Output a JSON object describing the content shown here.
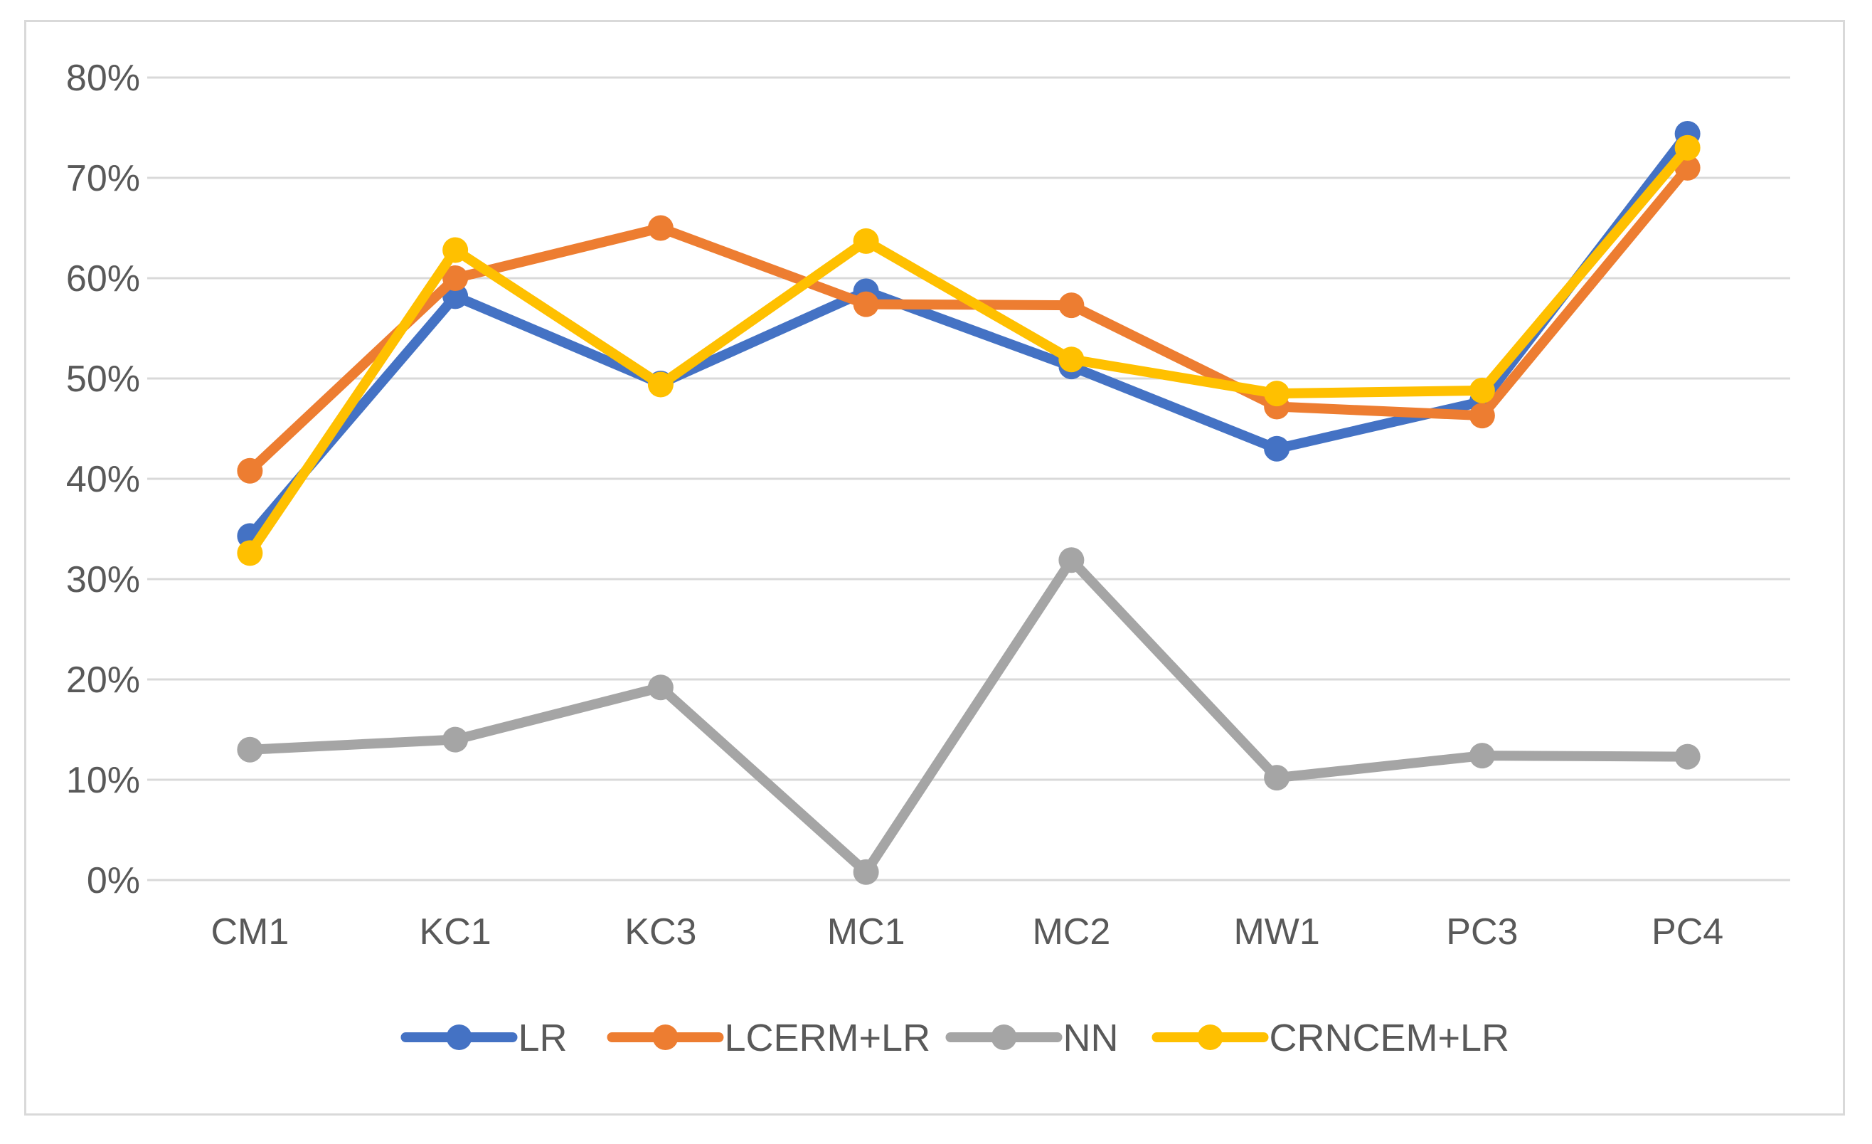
{
  "chart_data": {
    "type": "line",
    "title": "",
    "xlabel": "",
    "ylabel": "",
    "categories": [
      "CM1",
      "KC1",
      "KC3",
      "MC1",
      "MC2",
      "MW1",
      "PC3",
      "PC4"
    ],
    "ylim": [
      0,
      80
    ],
    "yticks": [
      0,
      10,
      20,
      30,
      40,
      50,
      60,
      70,
      80
    ],
    "ytick_labels": [
      "0%",
      "10%",
      "20%",
      "30%",
      "40%",
      "50%",
      "60%",
      "70%",
      "80%"
    ],
    "grid": true,
    "legend_position": "bottom",
    "series": [
      {
        "name": "LR",
        "color": "#4472c4",
        "values": [
          34.3,
          58.2,
          49.5,
          58.7,
          51.2,
          43.0,
          47.7,
          74.4
        ]
      },
      {
        "name": "LCERM+LR",
        "color": "#ed7d31",
        "values": [
          40.8,
          60.0,
          65.0,
          57.4,
          57.3,
          47.2,
          46.3,
          71.0
        ]
      },
      {
        "name": "NN",
        "color": "#a5a5a5",
        "values": [
          13.0,
          14.0,
          19.2,
          0.8,
          31.9,
          10.2,
          12.4,
          12.3
        ]
      },
      {
        "name": "CRNCEM+LR",
        "color": "#ffc000",
        "values": [
          32.6,
          62.8,
          49.4,
          63.7,
          51.9,
          48.5,
          48.8,
          73.0
        ]
      }
    ]
  }
}
